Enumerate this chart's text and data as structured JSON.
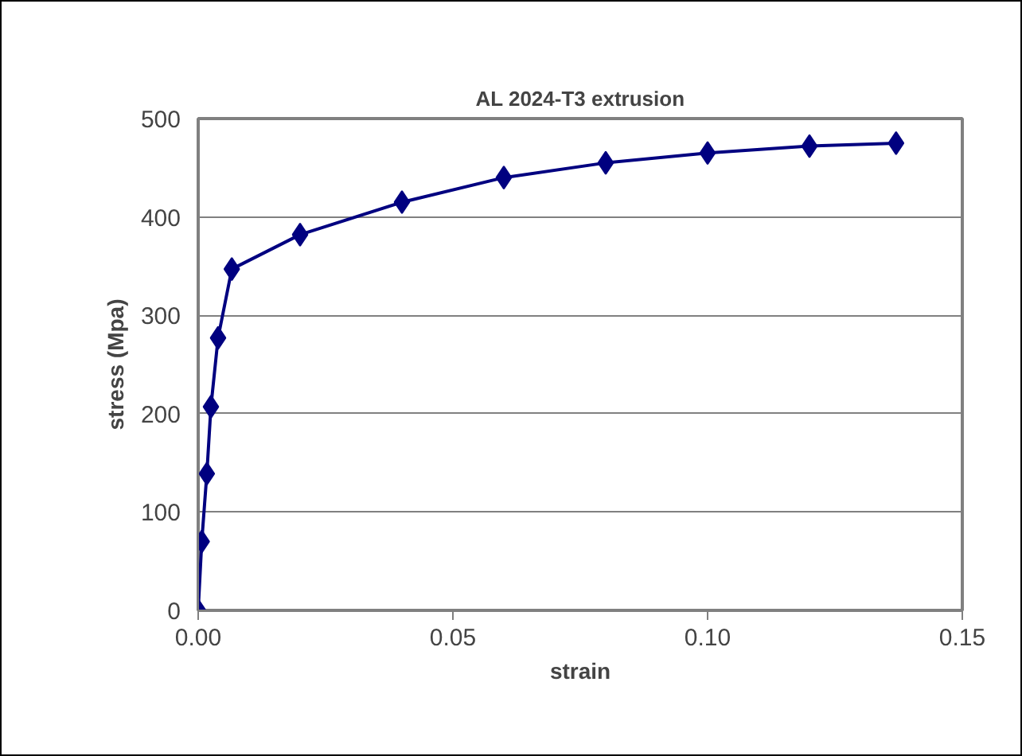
{
  "chart_data": {
    "type": "line",
    "title": "AL 2024-T3 extrusion",
    "xlabel": "strain",
    "ylabel": "stress (Mpa)",
    "x": [
      0,
      0.0007,
      0.0017,
      0.0025,
      0.0039,
      0.0066,
      0.02,
      0.04,
      0.06,
      0.08,
      0.1,
      0.12,
      0.137
    ],
    "series": [
      {
        "color": "#000080",
        "values": [
          0,
          70,
          139,
          207,
          277,
          347,
          382,
          415,
          440,
          455,
          465,
          472,
          475
        ]
      }
    ],
    "xlim": [
      0,
      0.15
    ],
    "ylim": [
      0,
      500
    ],
    "xticks": [
      {
        "value": 0,
        "label": "0.00"
      },
      {
        "value": 0.05,
        "label": "0.05"
      },
      {
        "value": 0.1,
        "label": "0.10"
      },
      {
        "value": 0.15,
        "label": "0.15"
      }
    ],
    "yticks": [
      0,
      100,
      200,
      300,
      400,
      500
    ],
    "grid": "y",
    "marker": "diamond",
    "line_style": "solid"
  }
}
